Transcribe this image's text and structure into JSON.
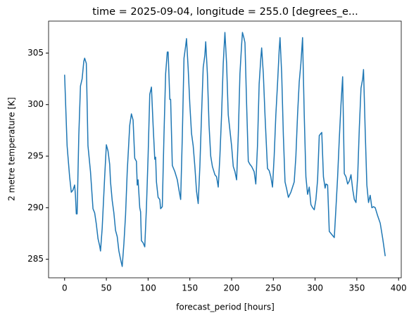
{
  "chart_data": {
    "type": "line",
    "title": "time = 2025-09-04, longitude = 255.0 [degrees_e...",
    "x_label": "forecast_period [hours]",
    "y_label": "2 metre temperature [K]",
    "xlim": [
      -19.2,
      403.2
    ],
    "xticks": [
      0,
      50,
      100,
      150,
      200,
      250,
      300,
      350,
      400
    ],
    "ylim": [
      283.2,
      308.1
    ],
    "yticks": [
      285,
      290,
      295,
      300,
      305
    ],
    "series": [
      {
        "color": "#1f77b4",
        "x": [
          0,
          3,
          6,
          8,
          10,
          12,
          13,
          14,
          15,
          17,
          19,
          21,
          23,
          24,
          26,
          28,
          31,
          34,
          36,
          38,
          40,
          42,
          43,
          45,
          48,
          50,
          52,
          54,
          55,
          57,
          59,
          61,
          63,
          65,
          67,
          69,
          71,
          73,
          75,
          78,
          80,
          82,
          84,
          86,
          87,
          88,
          90,
          91,
          92,
          94,
          96,
          98,
          100,
          102,
          104,
          106,
          108,
          109,
          110,
          112,
          114,
          115,
          117,
          119,
          121,
          123,
          124,
          126,
          127,
          129,
          132,
          135,
          137,
          139,
          141,
          143,
          145,
          146,
          148,
          150,
          152,
          154,
          156,
          158,
          160,
          162,
          164,
          166,
          168,
          169,
          171,
          173,
          175,
          177,
          180,
          182,
          184,
          186,
          188,
          190,
          192,
          194,
          196,
          198,
          200,
          202,
          204,
          206,
          208,
          210,
          212,
          213,
          215,
          216,
          218,
          220,
          222,
          224,
          227,
          229,
          231,
          233,
          235,
          236,
          238,
          240,
          242,
          243,
          245,
          247,
          249,
          251,
          253,
          255,
          257,
          258,
          260,
          262,
          264,
          266,
          268,
          271,
          273,
          275,
          277,
          279,
          281,
          283,
          285,
          287,
          289,
          291,
          293,
          295,
          297,
          299,
          301,
          303,
          305,
          307,
          308,
          310,
          312,
          313,
          315,
          317,
          319,
          321,
          323,
          325,
          327,
          329,
          331,
          333,
          335,
          337,
          339,
          341,
          343,
          345,
          347,
          349,
          351,
          353,
          355,
          357,
          358,
          360,
          362,
          364,
          366,
          368,
          370,
          372,
          375,
          378,
          381,
          384
        ],
        "values": [
          302.9,
          296,
          293,
          291.5,
          291.7,
          292.2,
          291.2,
          289.4,
          289.4,
          297,
          301.8,
          302.5,
          304.2,
          304.5,
          304,
          296,
          293.5,
          289.9,
          289.5,
          288.4,
          287,
          286.3,
          285.8,
          288,
          293,
          296.1,
          295.5,
          294.2,
          292.5,
          290.7,
          289.5,
          287.8,
          287.2,
          285.8,
          285,
          284.3,
          286.5,
          289.3,
          293.5,
          298,
          299.1,
          298.5,
          294.8,
          294.5,
          292.2,
          292.7,
          290,
          289.6,
          286.8,
          286.6,
          286.2,
          290,
          295,
          301,
          301.7,
          298,
          294.7,
          294.9,
          292.5,
          291,
          290.8,
          289.9,
          290.1,
          297,
          303,
          305.1,
          305.1,
          300.5,
          300.5,
          294.1,
          293.5,
          292.7,
          291.7,
          290.8,
          297,
          304.5,
          305.7,
          306.4,
          303.5,
          300,
          297.2,
          296,
          294,
          291.6,
          290.4,
          294,
          299,
          303.6,
          304.8,
          306.1,
          303,
          298,
          295,
          294,
          293.2,
          293,
          292,
          295,
          299,
          304,
          307,
          304,
          299,
          297.5,
          296,
          294,
          293.5,
          292.7,
          297,
          303,
          305.8,
          307,
          306.4,
          306,
          300,
          294.5,
          294.2,
          294,
          293.5,
          292.3,
          296,
          302,
          304.5,
          305.5,
          303,
          299,
          295.5,
          293.8,
          293.6,
          293,
          292,
          295,
          299,
          302,
          305.3,
          306.5,
          303,
          297,
          292.5,
          291.8,
          291,
          291.5,
          292,
          292.5,
          295,
          299,
          302.2,
          304,
          306.5,
          299,
          293,
          291.3,
          292,
          290.3,
          290,
          289.8,
          290.8,
          292.7,
          297,
          297.2,
          297.3,
          293,
          291.9,
          292.3,
          292.2,
          287.7,
          287.5,
          287.3,
          287.1,
          290,
          293,
          296.7,
          300,
          302.7,
          293.3,
          293,
          292.3,
          292.6,
          293.2,
          291.8,
          290.8,
          290.5,
          293,
          297.8,
          301.6,
          302.5,
          303.4,
          297.5,
          292.2,
          290.5,
          291.2,
          290,
          290.1,
          290,
          289.2,
          288.5,
          287,
          285.3
        ]
      }
    ]
  }
}
